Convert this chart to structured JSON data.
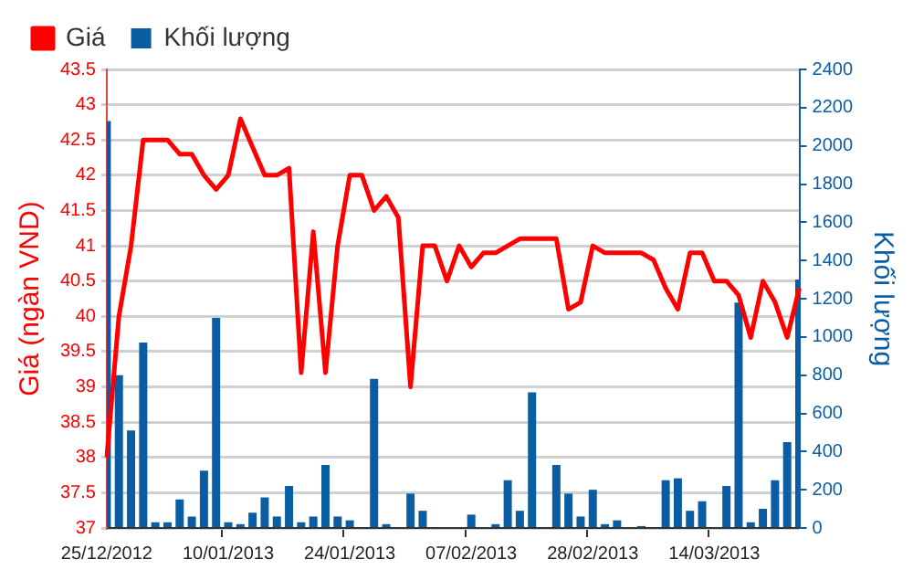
{
  "chart_data": {
    "type": "bar",
    "ylabel": "Giá (ngàn VND)",
    "y2label": "Khối lượng",
    "categories": [
      "25/12/2012",
      null,
      null,
      null,
      null,
      null,
      null,
      null,
      null,
      null,
      "10/01/2013",
      null,
      null,
      null,
      null,
      null,
      null,
      null,
      null,
      null,
      "24/01/2013",
      null,
      null,
      null,
      null,
      null,
      null,
      null,
      null,
      null,
      "07/02/2013",
      null,
      null,
      null,
      null,
      null,
      null,
      null,
      null,
      null,
      "28/02/2013",
      null,
      null,
      null,
      null,
      null,
      null,
      null,
      null,
      null,
      "14/03/2013",
      null,
      null,
      null,
      null,
      null,
      null,
      null
    ],
    "series": [
      {
        "name": "Giá",
        "type": "line",
        "axis": "y",
        "color": "#ff0000",
        "values": [
          38.0,
          40.0,
          41.0,
          42.5,
          42.5,
          42.5,
          42.3,
          42.3,
          42.0,
          41.8,
          42.0,
          42.8,
          42.4,
          42.0,
          42.0,
          42.1,
          39.2,
          41.2,
          39.2,
          41.0,
          42.0,
          42.0,
          41.5,
          41.7,
          41.4,
          39.0,
          41.0,
          41.0,
          40.5,
          41.0,
          40.7,
          40.9,
          40.9,
          41.0,
          41.1,
          41.1,
          41.1,
          41.1,
          40.1,
          40.2,
          41.0,
          40.9,
          40.9,
          40.9,
          40.9,
          40.8,
          40.4,
          40.1,
          40.9,
          40.9,
          40.5,
          40.5,
          40.3,
          39.7,
          40.5,
          40.2,
          39.7,
          40.4
        ]
      },
      {
        "name": "Khối lượng",
        "axis": "y2",
        "color": "#0a5ca3",
        "values": [
          2130,
          800,
          510,
          970,
          30,
          30,
          150,
          60,
          300,
          1100,
          30,
          20,
          80,
          160,
          60,
          220,
          30,
          60,
          330,
          60,
          40,
          0,
          780,
          20,
          0,
          180,
          90,
          0,
          0,
          0,
          70,
          0,
          20,
          250,
          90,
          710,
          0,
          330,
          180,
          60,
          200,
          20,
          40,
          0,
          10,
          0,
          250,
          260,
          90,
          140,
          0,
          220,
          1180,
          30,
          100,
          250,
          450,
          1300
        ]
      }
    ],
    "ylim": [
      37,
      43.5
    ],
    "yticks": [
      37,
      37.5,
      38,
      38.5,
      39,
      39.5,
      40,
      40.5,
      41,
      41.5,
      42,
      42.5,
      43,
      43.5
    ],
    "y2lim": [
      0,
      2400
    ],
    "y2ticks": [
      0,
      200,
      400,
      600,
      800,
      1000,
      1200,
      1400,
      1600,
      1800,
      2000,
      2200,
      2400
    ],
    "grid": "y",
    "legend": "top left",
    "marker": "none",
    "line_style": "solid"
  }
}
